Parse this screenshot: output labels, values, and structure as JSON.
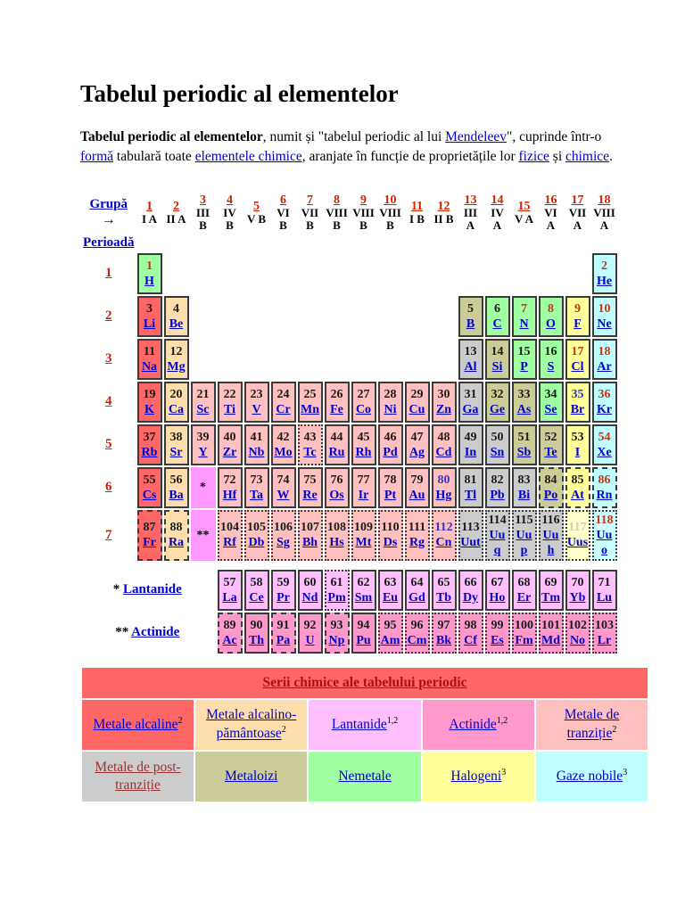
{
  "title": "Tabelul periodic al elementelor",
  "intro": {
    "segments": [
      {
        "text": "Tabelul periodic al elementelor",
        "bold": true
      },
      {
        "text": ", numit și \"tabelul periodic al lui "
      },
      {
        "text": "Mendeleev",
        "link": "blue"
      },
      {
        "text": "\", cuprinde într-o "
      },
      {
        "text": "formă",
        "link": "blue"
      },
      {
        "text": " tabulară toate "
      },
      {
        "text": "elementele chimice",
        "link": "blue"
      },
      {
        "text": ", aranjate în funcție de proprietățile lor "
      },
      {
        "text": "fizice",
        "link": "blue"
      },
      {
        "text": " și "
      },
      {
        "text": "chimice",
        "link": "blue"
      },
      {
        "text": "."
      }
    ]
  },
  "table": {
    "group_label": "Grupă",
    "group_arrow": "→",
    "period_label": "Perioadă",
    "groups": [
      {
        "num": "1",
        "roman": "I A"
      },
      {
        "num": "2",
        "roman": "II A"
      },
      {
        "num": "3",
        "roman": "III B"
      },
      {
        "num": "4",
        "roman": "IV B"
      },
      {
        "num": "5",
        "roman": "V B"
      },
      {
        "num": "6",
        "roman": "VI B"
      },
      {
        "num": "7",
        "roman": "VII B"
      },
      {
        "num": "8",
        "roman": "VIII B"
      },
      {
        "num": "9",
        "roman": "VIII B"
      },
      {
        "num": "10",
        "roman": "VIII B"
      },
      {
        "num": "11",
        "roman": "I B"
      },
      {
        "num": "12",
        "roman": "II B"
      },
      {
        "num": "13",
        "roman": "III A"
      },
      {
        "num": "14",
        "roman": "IV A"
      },
      {
        "num": "15",
        "roman": "V A"
      },
      {
        "num": "16",
        "roman": "VI A"
      },
      {
        "num": "17",
        "roman": "VII A"
      },
      {
        "num": "18",
        "roman": "VIII A"
      }
    ],
    "category_colors": {
      "alkali": "#FF6666",
      "alkaline": "#FFDEAD",
      "transition": "#FFC0C0",
      "post": "#CCCCCC",
      "metalloid": "#CCCC99",
      "nonmetal": "#A0FFA0",
      "halogen": "#FFFF99",
      "noble": "#C0FFFF",
      "lanthanide": "#FFBFFF",
      "actinide": "#FF99CC",
      "placeholder": "#FF99FF",
      "halogen_pred": "#FFFFCC",
      "noble_pred": "#CCFFFF"
    },
    "state_colors": {
      "solid": "#1A1A1A",
      "gas": "#CC3311",
      "liquid": "#3333CC",
      "faint": "#CFCFB8"
    },
    "rows": [
      {
        "period": "1",
        "cells": [
          {
            "n": "1",
            "s": "H",
            "c": "nonmetal",
            "st": "gas"
          },
          null,
          null,
          null,
          null,
          null,
          null,
          null,
          null,
          null,
          null,
          null,
          null,
          null,
          null,
          null,
          null,
          {
            "n": "2",
            "s": "He",
            "c": "noble",
            "st": "gas"
          }
        ]
      },
      {
        "period": "2",
        "cells": [
          {
            "n": "3",
            "s": "Li",
            "c": "alkali"
          },
          {
            "n": "4",
            "s": "Be",
            "c": "alkaline"
          },
          null,
          null,
          null,
          null,
          null,
          null,
          null,
          null,
          null,
          null,
          {
            "n": "5",
            "s": "B",
            "c": "metalloid"
          },
          {
            "n": "6",
            "s": "C",
            "c": "nonmetal"
          },
          {
            "n": "7",
            "s": "N",
            "c": "nonmetal",
            "st": "gas"
          },
          {
            "n": "8",
            "s": "O",
            "c": "nonmetal",
            "st": "gas"
          },
          {
            "n": "9",
            "s": "F",
            "c": "halogen",
            "st": "gas"
          },
          {
            "n": "10",
            "s": "Ne",
            "c": "noble",
            "st": "gas"
          }
        ]
      },
      {
        "period": "3",
        "cells": [
          {
            "n": "11",
            "s": "Na",
            "c": "alkali"
          },
          {
            "n": "12",
            "s": "Mg",
            "c": "alkaline"
          },
          null,
          null,
          null,
          null,
          null,
          null,
          null,
          null,
          null,
          null,
          {
            "n": "13",
            "s": "Al",
            "c": "post"
          },
          {
            "n": "14",
            "s": "Si",
            "c": "metalloid"
          },
          {
            "n": "15",
            "s": "P",
            "c": "nonmetal"
          },
          {
            "n": "16",
            "s": "S",
            "c": "nonmetal"
          },
          {
            "n": "17",
            "s": "Cl",
            "c": "halogen",
            "st": "gas"
          },
          {
            "n": "18",
            "s": "Ar",
            "c": "noble",
            "st": "gas"
          }
        ]
      },
      {
        "period": "4",
        "cells": [
          {
            "n": "19",
            "s": "K",
            "c": "alkali"
          },
          {
            "n": "20",
            "s": "Ca",
            "c": "alkaline"
          },
          {
            "n": "21",
            "s": "Sc",
            "c": "transition"
          },
          {
            "n": "22",
            "s": "Ti",
            "c": "transition"
          },
          {
            "n": "23",
            "s": "V",
            "c": "transition"
          },
          {
            "n": "24",
            "s": "Cr",
            "c": "transition"
          },
          {
            "n": "25",
            "s": "Mn",
            "c": "transition"
          },
          {
            "n": "26",
            "s": "Fe",
            "c": "transition"
          },
          {
            "n": "27",
            "s": "Co",
            "c": "transition"
          },
          {
            "n": "28",
            "s": "Ni",
            "c": "transition"
          },
          {
            "n": "29",
            "s": "Cu",
            "c": "transition"
          },
          {
            "n": "30",
            "s": "Zn",
            "c": "transition"
          },
          {
            "n": "31",
            "s": "Ga",
            "c": "post"
          },
          {
            "n": "32",
            "s": "Ge",
            "c": "metalloid"
          },
          {
            "n": "33",
            "s": "As",
            "c": "metalloid"
          },
          {
            "n": "34",
            "s": "Se",
            "c": "nonmetal"
          },
          {
            "n": "35",
            "s": "Br",
            "c": "halogen",
            "st": "liquid"
          },
          {
            "n": "36",
            "s": "Kr",
            "c": "noble",
            "st": "gas"
          }
        ]
      },
      {
        "period": "5",
        "cells": [
          {
            "n": "37",
            "s": "Rb",
            "c": "alkali"
          },
          {
            "n": "38",
            "s": "Sr",
            "c": "alkaline"
          },
          {
            "n": "39",
            "s": "Y",
            "c": "transition"
          },
          {
            "n": "40",
            "s": "Zr",
            "c": "transition"
          },
          {
            "n": "41",
            "s": "Nb",
            "c": "transition"
          },
          {
            "n": "42",
            "s": "Mo",
            "c": "transition"
          },
          {
            "n": "43",
            "s": "Tc",
            "c": "transition",
            "b": "o"
          },
          {
            "n": "44",
            "s": "Ru",
            "c": "transition"
          },
          {
            "n": "45",
            "s": "Rh",
            "c": "transition"
          },
          {
            "n": "46",
            "s": "Pd",
            "c": "transition"
          },
          {
            "n": "47",
            "s": "Ag",
            "c": "transition"
          },
          {
            "n": "48",
            "s": "Cd",
            "c": "transition"
          },
          {
            "n": "49",
            "s": "In",
            "c": "post"
          },
          {
            "n": "50",
            "s": "Sn",
            "c": "post"
          },
          {
            "n": "51",
            "s": "Sb",
            "c": "metalloid"
          },
          {
            "n": "52",
            "s": "Te",
            "c": "metalloid"
          },
          {
            "n": "53",
            "s": "I",
            "c": "halogen"
          },
          {
            "n": "54",
            "s": "Xe",
            "c": "noble",
            "st": "gas"
          }
        ]
      },
      {
        "period": "6",
        "cells": [
          {
            "n": "55",
            "s": "Cs",
            "c": "alkali"
          },
          {
            "n": "56",
            "s": "Ba",
            "c": "alkaline"
          },
          {
            "n": "*",
            "s": "",
            "c": "placeholder",
            "ph": true
          },
          {
            "n": "72",
            "s": "Hf",
            "c": "transition"
          },
          {
            "n": "73",
            "s": "Ta",
            "c": "transition"
          },
          {
            "n": "74",
            "s": "W",
            "c": "transition"
          },
          {
            "n": "75",
            "s": "Re",
            "c": "transition"
          },
          {
            "n": "76",
            "s": "Os",
            "c": "transition"
          },
          {
            "n": "77",
            "s": "Ir",
            "c": "transition"
          },
          {
            "n": "78",
            "s": "Pt",
            "c": "transition"
          },
          {
            "n": "79",
            "s": "Au",
            "c": "transition"
          },
          {
            "n": "80",
            "s": "Hg",
            "c": "transition",
            "st": "liquid"
          },
          {
            "n": "81",
            "s": "Tl",
            "c": "post"
          },
          {
            "n": "82",
            "s": "Pb",
            "c": "post"
          },
          {
            "n": "83",
            "s": "Bi",
            "c": "post"
          },
          {
            "n": "84",
            "s": "Po",
            "c": "metalloid",
            "b": "d"
          },
          {
            "n": "85",
            "s": "At",
            "c": "halogen",
            "b": "d"
          },
          {
            "n": "86",
            "s": "Rn",
            "c": "noble",
            "st": "gas",
            "b": "d"
          }
        ]
      },
      {
        "period": "7",
        "cells": [
          {
            "n": "87",
            "s": "Fr",
            "c": "alkali",
            "b": "d"
          },
          {
            "n": "88",
            "s": "Ra",
            "c": "alkaline",
            "b": "d"
          },
          {
            "n": "**",
            "s": "",
            "c": "placeholder",
            "ph": true
          },
          {
            "n": "104",
            "s": "Rf",
            "c": "transition",
            "b": "o"
          },
          {
            "n": "105",
            "s": "Db",
            "c": "transition",
            "b": "o"
          },
          {
            "n": "106",
            "s": "Sg",
            "c": "transition",
            "b": "o"
          },
          {
            "n": "107",
            "s": "Bh",
            "c": "transition",
            "b": "o"
          },
          {
            "n": "108",
            "s": "Hs",
            "c": "transition",
            "b": "o"
          },
          {
            "n": "109",
            "s": "Mt",
            "c": "transition",
            "b": "o"
          },
          {
            "n": "110",
            "s": "Ds",
            "c": "transition",
            "b": "o"
          },
          {
            "n": "111",
            "s": "Rg",
            "c": "transition",
            "b": "o"
          },
          {
            "n": "112",
            "s": "Cn",
            "c": "transition",
            "st": "liquid",
            "b": "o"
          },
          {
            "n": "113",
            "s": "Uut",
            "c": "post",
            "b": "o"
          },
          {
            "n": "114",
            "s": "Uuq",
            "c": "post",
            "b": "o"
          },
          {
            "n": "115",
            "s": "Uup",
            "c": "post",
            "b": "o"
          },
          {
            "n": "116",
            "s": "Uuh",
            "c": "post",
            "b": "o"
          },
          {
            "n": "117",
            "s": "Uus",
            "c": "halogen_pred",
            "st": "faint",
            "b": "o"
          },
          {
            "n": "118",
            "s": "Uuo",
            "c": "noble_pred",
            "st": "gas",
            "b": "o"
          }
        ]
      }
    ],
    "lanthanide_star": "*",
    "lanthanide_label": "Lantanide",
    "actinide_star": "**",
    "actinide_label": "Actinide",
    "lanthanides": [
      {
        "n": "57",
        "s": "La",
        "c": "lanthanide"
      },
      {
        "n": "58",
        "s": "Ce",
        "c": "lanthanide"
      },
      {
        "n": "59",
        "s": "Pr",
        "c": "lanthanide"
      },
      {
        "n": "60",
        "s": "Nd",
        "c": "lanthanide"
      },
      {
        "n": "61",
        "s": "Pm",
        "c": "lanthanide",
        "b": "o"
      },
      {
        "n": "62",
        "s": "Sm",
        "c": "lanthanide"
      },
      {
        "n": "63",
        "s": "Eu",
        "c": "lanthanide"
      },
      {
        "n": "64",
        "s": "Gd",
        "c": "lanthanide"
      },
      {
        "n": "65",
        "s": "Tb",
        "c": "lanthanide"
      },
      {
        "n": "66",
        "s": "Dy",
        "c": "lanthanide"
      },
      {
        "n": "67",
        "s": "Ho",
        "c": "lanthanide"
      },
      {
        "n": "68",
        "s": "Er",
        "c": "lanthanide"
      },
      {
        "n": "69",
        "s": "Tm",
        "c": "lanthanide"
      },
      {
        "n": "70",
        "s": "Yb",
        "c": "lanthanide"
      },
      {
        "n": "71",
        "s": "Lu",
        "c": "lanthanide"
      }
    ],
    "actinides": [
      {
        "n": "89",
        "s": "Ac",
        "c": "actinide",
        "b": "d"
      },
      {
        "n": "90",
        "s": "Th",
        "c": "actinide"
      },
      {
        "n": "91",
        "s": "Pa",
        "c": "actinide",
        "b": "d"
      },
      {
        "n": "92",
        "s": "U",
        "c": "actinide"
      },
      {
        "n": "93",
        "s": "Np",
        "c": "actinide",
        "b": "d"
      },
      {
        "n": "94",
        "s": "Pu",
        "c": "actinide"
      },
      {
        "n": "95",
        "s": "Am",
        "c": "actinide",
        "b": "o"
      },
      {
        "n": "96",
        "s": "Cm",
        "c": "actinide",
        "b": "o"
      },
      {
        "n": "97",
        "s": "Bk",
        "c": "actinide",
        "b": "o"
      },
      {
        "n": "98",
        "s": "Cf",
        "c": "actinide",
        "b": "o"
      },
      {
        "n": "99",
        "s": "Es",
        "c": "actinide",
        "b": "o"
      },
      {
        "n": "100",
        "s": "Fm",
        "c": "actinide",
        "b": "o"
      },
      {
        "n": "101",
        "s": "Md",
        "c": "actinide",
        "b": "o"
      },
      {
        "n": "102",
        "s": "No",
        "c": "actinide",
        "b": "o"
      },
      {
        "n": "103",
        "s": "Lr",
        "c": "actinide",
        "b": "o"
      }
    ]
  },
  "legend": {
    "header": "Serii chimice ale tabelului periodic",
    "header_color": "#AA1111",
    "banner_bg": "#FF6666",
    "rows": [
      [
        {
          "label": "Metale alcaline",
          "sup": "2",
          "cat": "alkali",
          "link": "blue"
        },
        {
          "label": "Metale alcalino-pământoase",
          "sup": "2",
          "cat": "alkaline",
          "link": "blue"
        },
        {
          "label": "Lantanide",
          "sup": "1,2",
          "cat": "lanthanide",
          "link": "blue"
        },
        {
          "label": "Actinide",
          "sup": "1,2",
          "cat": "actinide",
          "link": "blue"
        },
        {
          "label": "Metale de tranziție",
          "sup": "2",
          "cat": "transition",
          "link": "blue"
        }
      ],
      [
        {
          "label": "Metale de post-tranziție",
          "sup": "",
          "cat": "post",
          "link": "dark"
        },
        {
          "label": "Metaloizi",
          "sup": "",
          "cat": "metalloid",
          "link": "blue"
        },
        {
          "label": "Nemetale",
          "sup": "",
          "cat": "nonmetal",
          "link": "blue"
        },
        {
          "label": "Halogeni",
          "sup": "3",
          "cat": "halogen",
          "link": "blue"
        },
        {
          "label": "Gaze nobile",
          "sup": "3",
          "cat": "noble",
          "link": "blue"
        }
      ]
    ]
  }
}
